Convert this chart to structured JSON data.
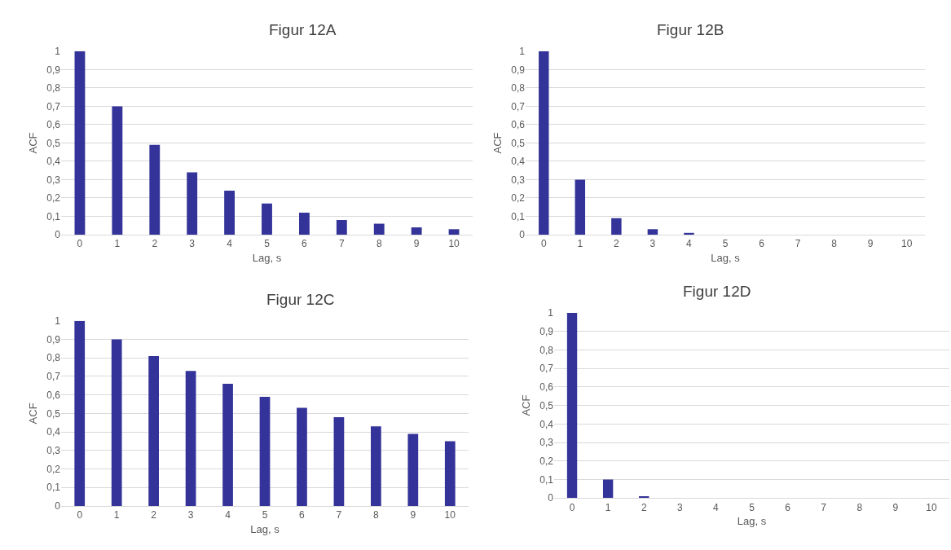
{
  "chart_data": [
    {
      "type": "bar",
      "title": "Figur 12A",
      "xlabel": "Lag, s",
      "ylabel": "ACF",
      "categories": [
        "0",
        "1",
        "2",
        "3",
        "4",
        "5",
        "6",
        "7",
        "8",
        "9",
        "10"
      ],
      "values": [
        1,
        0.7,
        0.49,
        0.34,
        0.24,
        0.17,
        0.12,
        0.08,
        0.06,
        0.04,
        0.03
      ],
      "color": "#333399",
      "ylim": [
        0,
        1
      ],
      "yticks": [
        0,
        {
          "value": 0.1,
          "label": "0,1"
        },
        {
          "value": 0.2,
          "label": "0,2"
        },
        {
          "value": 0.3,
          "label": "0,3"
        },
        {
          "value": 0.4,
          "label": "0,4"
        },
        {
          "value": 0.5,
          "label": "0,5"
        },
        {
          "value": 0.6,
          "label": "0,6"
        },
        {
          "value": 0.7,
          "label": "0,7"
        },
        {
          "value": 0.8,
          "label": "0,8"
        },
        {
          "value": 0.9,
          "label": "0,9"
        },
        1
      ],
      "grid": "y"
    },
    {
      "type": "bar",
      "title": "Figur 12B",
      "xlabel": "Lag, s",
      "ylabel": "ACF",
      "categories": [
        "0",
        "1",
        "2",
        "3",
        "4",
        "5",
        "6",
        "7",
        "8",
        "9",
        "10"
      ],
      "values": [
        1,
        0.3,
        0.09,
        0.03,
        0.01,
        0,
        0,
        0,
        0,
        0,
        0
      ],
      "color": "#333399",
      "ylim": [
        0,
        1
      ],
      "yticks": [
        0,
        {
          "value": 0.1,
          "label": "0,1"
        },
        {
          "value": 0.2,
          "label": "0,2"
        },
        {
          "value": 0.3,
          "label": "0,3"
        },
        {
          "value": 0.4,
          "label": "0,4"
        },
        {
          "value": 0.5,
          "label": "0,5"
        },
        {
          "value": 0.6,
          "label": "0,6"
        },
        {
          "value": 0.7,
          "label": "0,7"
        },
        {
          "value": 0.8,
          "label": "0,8"
        },
        {
          "value": 0.9,
          "label": "0,9"
        },
        1
      ],
      "grid": "y"
    },
    {
      "type": "bar",
      "title": "Figur 12C",
      "xlabel": "Lag, s",
      "ylabel": "ACF",
      "categories": [
        "0",
        "1",
        "2",
        "3",
        "4",
        "5",
        "6",
        "7",
        "8",
        "9",
        "10"
      ],
      "values": [
        1,
        0.9,
        0.81,
        0.73,
        0.66,
        0.59,
        0.53,
        0.48,
        0.43,
        0.39,
        0.35
      ],
      "color": "#333399",
      "ylim": [
        0,
        1
      ],
      "yticks": [
        0,
        {
          "value": 0.1,
          "label": "0,1"
        },
        {
          "value": 0.2,
          "label": "0,2"
        },
        {
          "value": 0.3,
          "label": "0,3"
        },
        {
          "value": 0.4,
          "label": "0,4"
        },
        {
          "value": 0.5,
          "label": "0,5"
        },
        {
          "value": 0.6,
          "label": "0,6"
        },
        {
          "value": 0.7,
          "label": "0,7"
        },
        {
          "value": 0.8,
          "label": "0,8"
        },
        {
          "value": 0.9,
          "label": "0,9"
        },
        1
      ],
      "grid": "y"
    },
    {
      "type": "bar",
      "title": "Figur 12D",
      "xlabel": "Lag, s",
      "ylabel": "ACF",
      "categories": [
        "0",
        "1",
        "2",
        "3",
        "4",
        "5",
        "6",
        "7",
        "8",
        "9",
        "10"
      ],
      "values": [
        1,
        0.1,
        0.01,
        0,
        0,
        0,
        0,
        0,
        0,
        0,
        0
      ],
      "color": "#333399",
      "ylim": [
        0,
        1
      ],
      "yticks": [
        0,
        {
          "value": 0.1,
          "label": "0,1"
        },
        {
          "value": 0.2,
          "label": "0,2"
        },
        {
          "value": 0.3,
          "label": "0,3"
        },
        {
          "value": 0.4,
          "label": "0,4"
        },
        {
          "value": 0.5,
          "label": "0,5"
        },
        {
          "value": 0.6,
          "label": "0,6"
        },
        {
          "value": 0.7,
          "label": "0,7"
        },
        {
          "value": 0.8,
          "label": "0,8"
        },
        {
          "value": 0.9,
          "label": "0,9"
        },
        1
      ],
      "grid": "y"
    }
  ]
}
